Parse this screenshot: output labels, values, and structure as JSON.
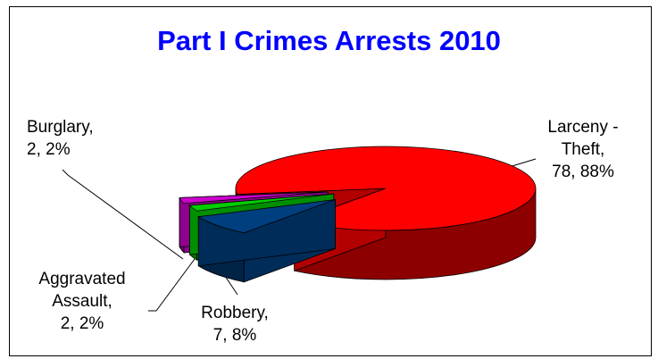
{
  "chart_data": {
    "type": "pie",
    "title": "Part I Crimes Arrests 2010",
    "slices": [
      {
        "category": "Larceny - Theft",
        "name_lines": [
          "Larceny -",
          "Theft,"
        ],
        "value": 78,
        "percent": "88%",
        "color": "#ff0000"
      },
      {
        "category": "Robbery",
        "name_lines": [
          "Robbery,"
        ],
        "value": 7,
        "percent": "8%",
        "color": "#003f7f"
      },
      {
        "category": "Aggravated Assault",
        "name_lines": [
          "Aggravated",
          "Assault,"
        ],
        "value": 2,
        "percent": "2%",
        "color": "#00cc00"
      },
      {
        "category": "Burglary",
        "name_lines": [
          "Burglary,"
        ],
        "value": 2,
        "percent": "2%",
        "color": "#cc00cc"
      }
    ],
    "exploded": true,
    "three_d": true,
    "legend": "none"
  },
  "colors": {
    "title": "#0000ff",
    "frame": "#000000"
  }
}
